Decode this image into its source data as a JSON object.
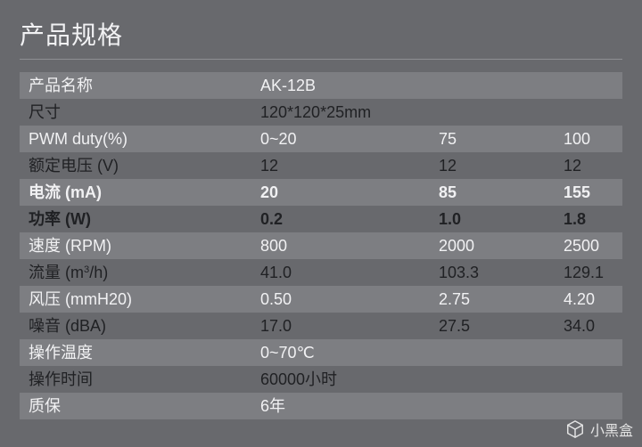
{
  "colors": {
    "page_bg": "#68696d",
    "title_color": "#f1f1f3",
    "divider_color": "#8e8f93",
    "row_bg_a": "#7d7e82",
    "row_bg_b": "#68696d",
    "text_light": "#f1f1f3",
    "text_dark": "#202124",
    "watermark_color": "#eeeeee"
  },
  "typography": {
    "title_fontsize": 28,
    "row_fontsize": 18,
    "font_family": "Microsoft YaHei"
  },
  "title": "产品规格",
  "rows": [
    {
      "label": "产品名称",
      "values": [
        "AK-12B"
      ],
      "span": 3,
      "text": "light",
      "bold": false
    },
    {
      "label": "尺寸",
      "values": [
        "120*120*25mm"
      ],
      "span": 3,
      "text": "dark",
      "bold": false
    },
    {
      "label": "PWM duty(%)",
      "values": [
        "0~20",
        "75",
        "100"
      ],
      "span": 1,
      "text": "light",
      "bold": false
    },
    {
      "label": "额定电压 (V)",
      "values": [
        "12",
        "12",
        "12"
      ],
      "span": 1,
      "text": "dark",
      "bold": false
    },
    {
      "label": "电流 (mA)",
      "values": [
        "20",
        "85",
        "155"
      ],
      "span": 1,
      "text": "light",
      "bold": true
    },
    {
      "label": "功率 (W)",
      "values": [
        "0.2",
        "1.0",
        "1.8"
      ],
      "span": 1,
      "text": "dark",
      "bold": true
    },
    {
      "label": "速度 (RPM)",
      "values": [
        "800",
        "2000",
        "2500"
      ],
      "span": 1,
      "text": "light",
      "bold": false
    },
    {
      "label": "流量 (m³/h)",
      "label_html": "流量 (m<span class=\"sup\">3</span>/h)",
      "values": [
        "41.0",
        "103.3",
        "129.1"
      ],
      "span": 1,
      "text": "dark",
      "bold": false
    },
    {
      "label": "风压 (mmH20)",
      "values": [
        "0.50",
        "2.75",
        "4.20"
      ],
      "span": 1,
      "text": "light",
      "bold": false
    },
    {
      "label": "噪音 (dBA)",
      "values": [
        "17.0",
        "27.5",
        "34.0"
      ],
      "span": 1,
      "text": "dark",
      "bold": false
    },
    {
      "label": "操作温度",
      "values": [
        "0~70℃"
      ],
      "span": 3,
      "text": "light",
      "bold": false
    },
    {
      "label": "操作时间",
      "values": [
        "60000小时"
      ],
      "span": 3,
      "text": "dark",
      "bold": false
    },
    {
      "label": "质保",
      "values": [
        "6年"
      ],
      "span": 3,
      "text": "light",
      "bold": false
    }
  ],
  "watermark": {
    "text": "小黑盒"
  }
}
